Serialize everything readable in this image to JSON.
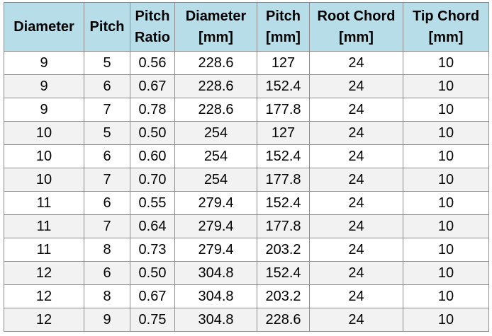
{
  "table": {
    "header": [
      "Diameter",
      "Pitch",
      "Pitch Ratio",
      "Diameter [mm]",
      "Pitch [mm]",
      "Root Chord [mm]",
      "Tip Chord [mm]"
    ],
    "rows": [
      [
        "9",
        "5",
        "0.56",
        "228.6",
        "127",
        "24",
        "10"
      ],
      [
        "9",
        "6",
        "0.67",
        "228.6",
        "152.4",
        "24",
        "10"
      ],
      [
        "9",
        "7",
        "0.78",
        "228.6",
        "177.8",
        "24",
        "10"
      ],
      [
        "10",
        "5",
        "0.50",
        "254",
        "127",
        "24",
        "10"
      ],
      [
        "10",
        "6",
        "0.60",
        "254",
        "152.4",
        "24",
        "10"
      ],
      [
        "10",
        "7",
        "0.70",
        "254",
        "177.8",
        "24",
        "10"
      ],
      [
        "11",
        "6",
        "0.55",
        "279.4",
        "152.4",
        "24",
        "10"
      ],
      [
        "11",
        "7",
        "0.64",
        "279.4",
        "177.8",
        "24",
        "10"
      ],
      [
        "11",
        "8",
        "0.73",
        "279.4",
        "203.2",
        "24",
        "10"
      ],
      [
        "12",
        "6",
        "0.50",
        "304.8",
        "152.4",
        "24",
        "10"
      ],
      [
        "12",
        "8",
        "0.67",
        "304.8",
        "203.2",
        "24",
        "10"
      ],
      [
        "12",
        "9",
        "0.75",
        "304.8",
        "228.6",
        "24",
        "10"
      ]
    ]
  }
}
